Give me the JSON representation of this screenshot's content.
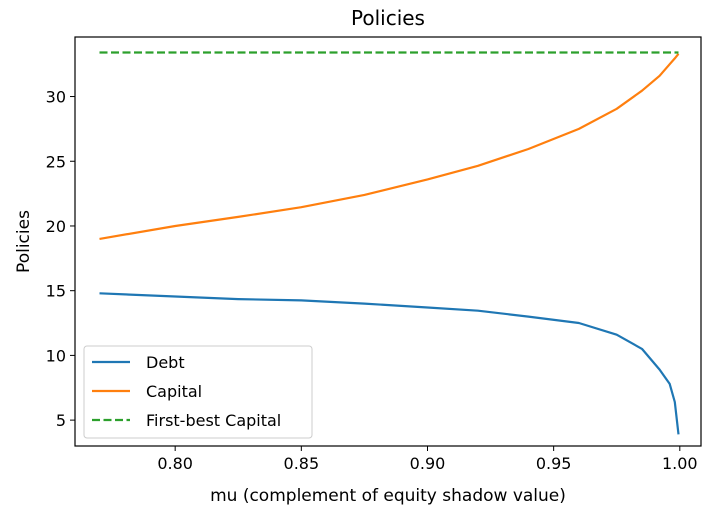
{
  "chart_data": {
    "type": "line",
    "title": "Policies",
    "xlabel": "mu (complement of equity shadow value)",
    "ylabel": "Policies",
    "xlim": [
      0.7603,
      1.0084
    ],
    "ylim": [
      3.0,
      34.6
    ],
    "xticks": [
      0.8,
      0.85,
      0.9,
      0.95,
      1.0
    ],
    "xtick_labels": [
      "0.80",
      "0.85",
      "0.90",
      "0.95",
      "1.00"
    ],
    "yticks": [
      5,
      10,
      15,
      20,
      25,
      30
    ],
    "ytick_labels": [
      "5",
      "10",
      "15",
      "20",
      "25",
      "30"
    ],
    "grid": false,
    "legend_position": "lower-left",
    "series": [
      {
        "name": "Debt",
        "color": "#1f77b4",
        "dash": "solid",
        "x": [
          0.77,
          0.8,
          0.825,
          0.85,
          0.875,
          0.9,
          0.92,
          0.94,
          0.96,
          0.975,
          0.985,
          0.992,
          0.996,
          0.998,
          0.9995
        ],
        "y": [
          14.8,
          14.55,
          14.35,
          14.25,
          14.0,
          13.7,
          13.45,
          13.0,
          12.5,
          11.6,
          10.5,
          8.9,
          7.8,
          6.4,
          3.9
        ]
      },
      {
        "name": "Capital",
        "color": "#ff7f0e",
        "dash": "solid",
        "x": [
          0.77,
          0.8,
          0.825,
          0.85,
          0.875,
          0.9,
          0.92,
          0.94,
          0.96,
          0.975,
          0.985,
          0.992,
          0.996,
          0.998,
          0.9995
        ],
        "y": [
          19.0,
          20.0,
          20.7,
          21.45,
          22.4,
          23.6,
          24.65,
          25.95,
          27.5,
          29.05,
          30.45,
          31.6,
          32.5,
          32.95,
          33.3
        ]
      },
      {
        "name": "First-best Capital",
        "color": "#2ca02c",
        "dash": "dashed",
        "x": [
          0.77,
          0.9995
        ],
        "y": [
          33.4,
          33.4
        ]
      }
    ]
  }
}
